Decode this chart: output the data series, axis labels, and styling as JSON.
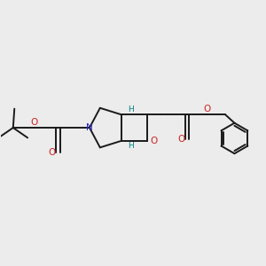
{
  "bg_color": "#ececec",
  "bond_color": "#1a1a1a",
  "N_color": "#2222cc",
  "O_color": "#cc2222",
  "H_color": "#008080",
  "line_width": 1.4,
  "figsize": [
    3.0,
    3.0
  ],
  "dpi": 100,
  "xlim": [
    0,
    10
  ],
  "ylim": [
    0,
    10
  ]
}
